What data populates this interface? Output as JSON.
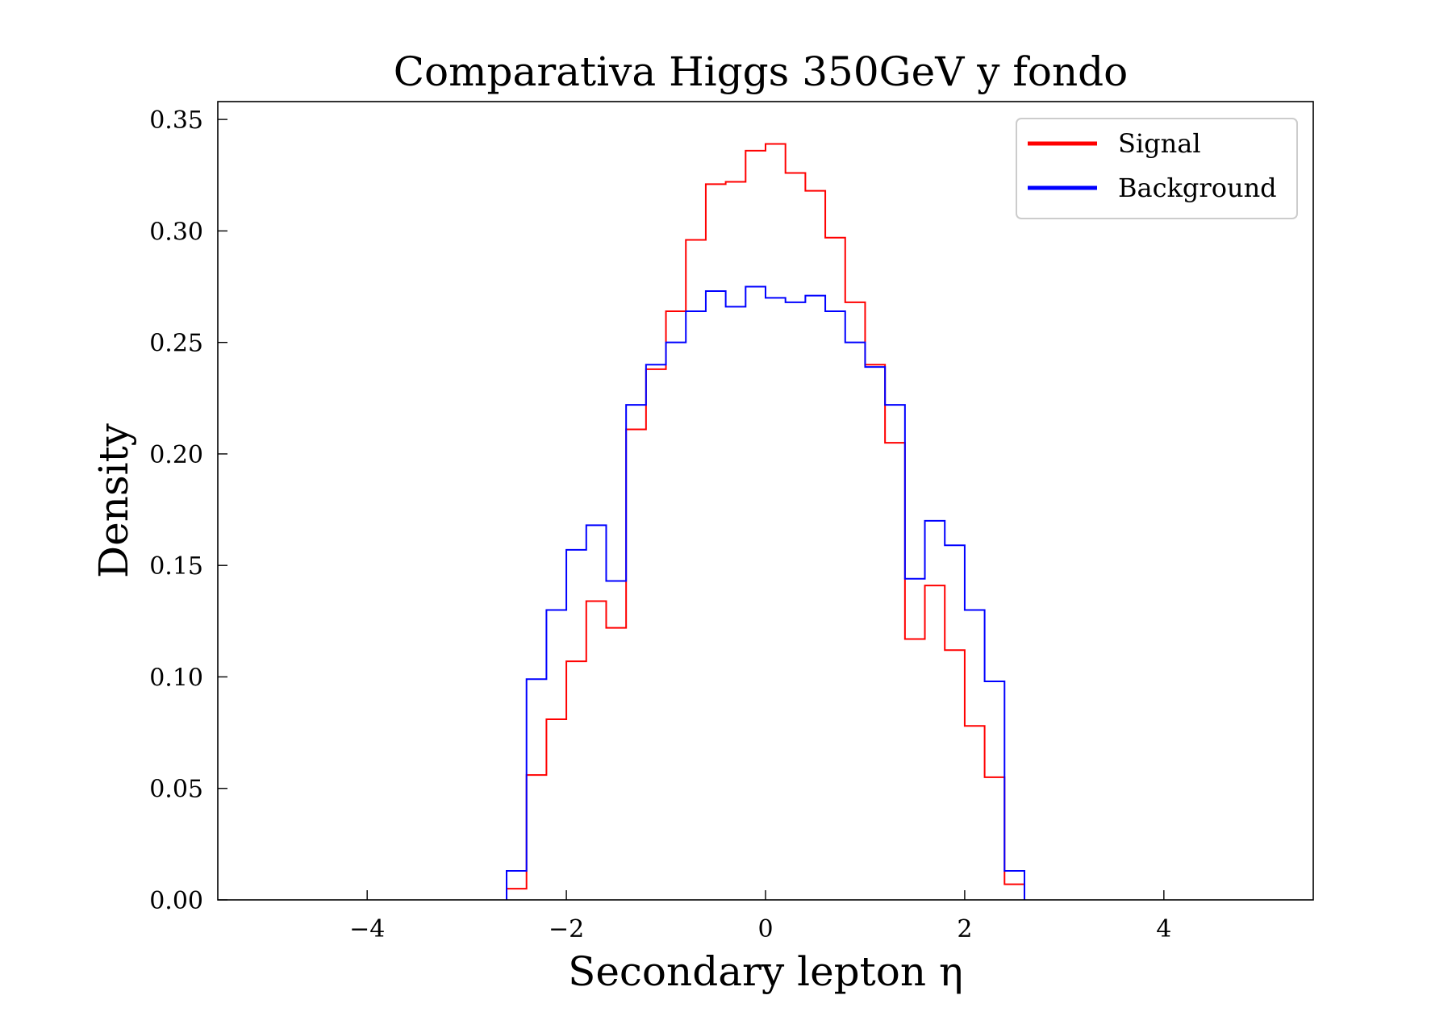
{
  "chart_data": {
    "type": "histogram-step",
    "title": "Comparativa Higgs 350GeV y fondo",
    "xlabel": "Secondary lepton η",
    "ylabel": "Density",
    "xlim": [
      -5.5,
      5.5
    ],
    "ylim": [
      0,
      0.358
    ],
    "xticks": [
      -4,
      -2,
      0,
      2,
      4
    ],
    "xtick_labels": [
      "−4",
      "−2",
      "0",
      "2",
      "4"
    ],
    "yticks": [
      0,
      0.05,
      0.1,
      0.15,
      0.2,
      0.25,
      0.3,
      0.35
    ],
    "ytick_labels": [
      "0.00",
      "0.05",
      "0.10",
      "0.15",
      "0.20",
      "0.25",
      "0.30",
      "0.35"
    ],
    "grid": false,
    "legend_position": "top-right",
    "bin_edges": [
      -2.6,
      -2.4,
      -2.2,
      -2.0,
      -1.8,
      -1.6,
      -1.4,
      -1.2,
      -1.0,
      -0.8,
      -0.6,
      -0.4,
      -0.2,
      0.0,
      0.2,
      0.4,
      0.6,
      0.8,
      1.0,
      1.2,
      1.4,
      1.6,
      1.8,
      2.0,
      2.2,
      2.4,
      2.6
    ],
    "series": [
      {
        "name": "Signal",
        "color": "#ff0000",
        "values": [
          0.005,
          0.056,
          0.081,
          0.107,
          0.134,
          0.122,
          0.211,
          0.238,
          0.264,
          0.296,
          0.321,
          0.322,
          0.336,
          0.339,
          0.326,
          0.318,
          0.297,
          0.268,
          0.24,
          0.205,
          0.117,
          0.141,
          0.112,
          0.078,
          0.055,
          0.007
        ]
      },
      {
        "name": "Background",
        "color": "#0000ff",
        "values": [
          0.013,
          0.099,
          0.13,
          0.157,
          0.168,
          0.143,
          0.222,
          0.24,
          0.25,
          0.264,
          0.273,
          0.266,
          0.275,
          0.27,
          0.268,
          0.271,
          0.264,
          0.25,
          0.239,
          0.222,
          0.144,
          0.17,
          0.159,
          0.13,
          0.098,
          0.013
        ]
      }
    ]
  }
}
